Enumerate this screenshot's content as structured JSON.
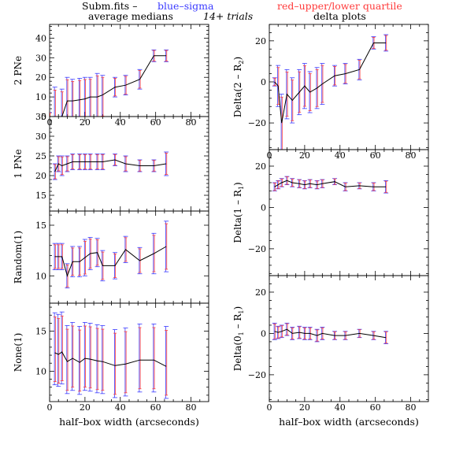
{
  "header": {
    "line1_prefix": "Subm.fits  –",
    "line1_blue": "blue–sigma",
    "line1_red": "red–upper/lower quartile",
    "left_title": "average medians",
    "center_note": "14+ trials",
    "right_title": "delta plots"
  },
  "colors": {
    "sigma": "#3a3aff",
    "quartile": "#ff3a3a",
    "line": "#000000"
  },
  "chart_data": [
    {
      "type": "line",
      "panel": "left-1",
      "xlabel": "",
      "ylabel": "2 PNe",
      "xlim": [
        0,
        90
      ],
      "ylim": [
        0,
        47
      ],
      "x_ticks": [
        0,
        20,
        40,
        60,
        80
      ],
      "y_ticks": [
        0,
        10,
        20,
        30,
        40
      ],
      "x_tick_labels": [
        "0",
        "20",
        "40",
        "60",
        "80"
      ],
      "y_tick_labels": [
        "0",
        "10",
        "20",
        "30",
        "40"
      ],
      "x": [
        0,
        3,
        7,
        10,
        13,
        17,
        20,
        23,
        27,
        30,
        37,
        43,
        51,
        59,
        66
      ],
      "y": [
        0,
        0,
        0,
        8,
        8,
        8.5,
        9,
        10,
        10,
        11,
        15,
        16,
        19,
        31,
        31
      ],
      "err_low": [
        0,
        15,
        5,
        12,
        12,
        12,
        10,
        13,
        12,
        12,
        5,
        5,
        5,
        3,
        3
      ],
      "err_high": [
        2,
        15,
        14,
        12,
        11,
        11,
        11,
        10,
        12,
        10,
        5,
        5,
        5,
        3,
        3
      ]
    },
    {
      "type": "line",
      "panel": "left-2",
      "xlabel": "",
      "ylabel": "1 PNe",
      "xlim": [
        0,
        90
      ],
      "ylim": [
        11,
        35
      ],
      "x_ticks": [
        0,
        20,
        40,
        60,
        80
      ],
      "y_ticks": [
        15,
        20,
        25,
        30,
        35
      ],
      "x_tick_labels": [],
      "y_tick_labels": [
        "15",
        "20",
        "25",
        "30",
        "35"
      ],
      "x": [
        3,
        5,
        7,
        10,
        13,
        17,
        20,
        23,
        27,
        30,
        37,
        43,
        51,
        59,
        66
      ],
      "y": [
        21,
        23,
        22.5,
        23,
        23.5,
        23.5,
        23.5,
        23.5,
        23.5,
        23.5,
        24,
        23,
        22.5,
        22.5,
        23
      ],
      "err_low": [
        2,
        2,
        2.5,
        2,
        2,
        2,
        2,
        2,
        2,
        2,
        1.5,
        2,
        1.5,
        1.5,
        3
      ],
      "err_high": [
        2,
        2,
        2.5,
        2,
        2,
        2,
        2,
        2,
        2,
        2,
        1.5,
        2,
        1.5,
        1.5,
        3
      ]
    },
    {
      "type": "line",
      "panel": "left-3",
      "xlabel": "",
      "ylabel": "Random(1)",
      "xlim": [
        0,
        90
      ],
      "ylim": [
        7.3,
        16.4
      ],
      "x_ticks": [
        0,
        20,
        40,
        60,
        80
      ],
      "y_ticks": [
        10,
        15
      ],
      "x_tick_labels": [],
      "y_tick_labels": [
        "10",
        "15"
      ],
      "x": [
        3,
        5,
        7,
        10,
        13,
        17,
        20,
        23,
        27,
        30,
        37,
        43,
        51,
        59,
        66
      ],
      "y": [
        11.9,
        11.9,
        11.9,
        10,
        11.4,
        11.4,
        11.8,
        12.2,
        12.3,
        11,
        11,
        12.6,
        11.5,
        12.2,
        12.9
      ],
      "err_low": [
        1.3,
        1.3,
        1.3,
        1.2,
        1.5,
        1.5,
        1.8,
        1.6,
        1.4,
        1.5,
        1.3,
        1.3,
        1.3,
        2,
        2.5
      ],
      "err_high": [
        1.3,
        1.3,
        1.3,
        1.2,
        1.5,
        1.5,
        1.8,
        1.6,
        1.4,
        1.5,
        1.3,
        1.3,
        1.3,
        2,
        2.5
      ]
    },
    {
      "type": "line",
      "panel": "left-4",
      "xlabel": "half–box width (arcseconds)",
      "ylabel": "None(1)",
      "xlim": [
        0,
        90
      ],
      "ylim": [
        6.2,
        18.5
      ],
      "x_ticks": [
        0,
        20,
        40,
        60,
        80
      ],
      "y_ticks": [
        10,
        15
      ],
      "x_tick_labels": [
        "0",
        "20",
        "40",
        "60",
        "80"
      ],
      "y_tick_labels": [
        "10",
        "15"
      ],
      "x": [
        3,
        5,
        7,
        10,
        13,
        17,
        20,
        23,
        27,
        30,
        37,
        43,
        51,
        59,
        66
      ],
      "y": [
        12.3,
        12.1,
        12.4,
        11.2,
        11.6,
        11.1,
        11.6,
        11.5,
        11.3,
        11.2,
        10.7,
        10.9,
        11.4,
        11.4,
        10.6
      ],
      "err_low": [
        4,
        4,
        4,
        4,
        4,
        4,
        4,
        4,
        4,
        4,
        4,
        4,
        4,
        4,
        4
      ],
      "err_high": [
        5,
        5,
        5,
        4.5,
        4.5,
        4.5,
        4.5,
        4.5,
        4.5,
        4.5,
        4.5,
        4.5,
        4.5,
        4.5,
        5
      ]
    },
    {
      "type": "line",
      "panel": "right-1",
      "xlabel": "",
      "ylabel": "Delta(2 – R",
      "ylabel_sub": "2",
      "ylabel_close": ")",
      "xlim": [
        0,
        90
      ],
      "ylim": [
        -33,
        28
      ],
      "x_ticks": [
        0,
        20,
        40,
        60,
        80
      ],
      "y_ticks": [
        -20,
        0,
        20
      ],
      "x_tick_labels": [
        "0",
        "20",
        "40",
        "60",
        "80"
      ],
      "y_tick_labels": [
        "−20",
        "0",
        "20"
      ],
      "x": [
        3,
        5,
        7,
        10,
        13,
        17,
        20,
        23,
        27,
        30,
        37,
        43,
        51,
        59,
        66
      ],
      "y": [
        0,
        -2,
        -20,
        -6,
        -9,
        -5,
        -2,
        -5,
        -3,
        -1,
        3,
        4,
        6,
        19,
        19
      ],
      "err_low": [
        2,
        10,
        15,
        12,
        11,
        11,
        11,
        10,
        10,
        10,
        5,
        5,
        5,
        3,
        4
      ],
      "err_high": [
        2,
        10,
        14,
        12,
        11,
        11,
        11,
        10,
        10,
        10,
        5,
        5,
        5,
        3,
        4
      ]
    },
    {
      "type": "line",
      "panel": "right-2",
      "xlabel": "",
      "ylabel": "Delta(1 – R",
      "ylabel_sub": "1",
      "ylabel_close": ")",
      "xlim": [
        0,
        90
      ],
      "ylim": [
        -33,
        28
      ],
      "x_ticks": [
        0,
        20,
        40,
        60,
        80
      ],
      "y_ticks": [
        -20,
        0,
        20
      ],
      "x_tick_labels": [],
      "y_tick_labels": [
        "−20",
        "0",
        "20"
      ],
      "x": [
        3,
        5,
        7,
        10,
        13,
        17,
        20,
        23,
        27,
        30,
        37,
        43,
        51,
        59,
        66
      ],
      "y": [
        10,
        11,
        12,
        13,
        12,
        11.5,
        11,
        11.5,
        11,
        11.5,
        12.5,
        10,
        10.5,
        10,
        10
      ],
      "err_low": [
        2,
        2,
        2,
        2,
        2,
        2,
        2,
        2,
        2,
        2,
        1.5,
        2,
        1.5,
        2,
        3
      ],
      "err_high": [
        2,
        2,
        2,
        2,
        2,
        2,
        2,
        2,
        2,
        2,
        1.5,
        2,
        1.5,
        2,
        3
      ]
    },
    {
      "type": "line",
      "panel": "right-3",
      "xlabel": "half–box width (arcseconds)",
      "ylabel": "Delta(0",
      "ylabel_sub1": "1",
      "ylabel_mid": " – R",
      "ylabel_sub": "1",
      "ylabel_close": ")",
      "xlim": [
        0,
        90
      ],
      "ylim": [
        -33,
        28
      ],
      "x_ticks": [
        0,
        20,
        40,
        60,
        80
      ],
      "y_ticks": [
        -20,
        0,
        20
      ],
      "x_tick_labels": [
        "0",
        "20",
        "40",
        "60",
        "80"
      ],
      "y_tick_labels": [
        "−20",
        "0",
        "20"
      ],
      "x": [
        3,
        5,
        7,
        10,
        13,
        17,
        20,
        23,
        27,
        30,
        37,
        43,
        51,
        59,
        66
      ],
      "y": [
        1,
        0.5,
        1,
        2,
        0,
        0.5,
        0,
        0,
        -1,
        0,
        -1,
        -1,
        0,
        -1,
        -2
      ],
      "err_low": [
        4,
        3,
        3,
        3,
        3,
        3,
        3,
        3,
        3,
        3,
        2,
        2,
        2,
        2,
        3
      ],
      "err_high": [
        4,
        3,
        3,
        3,
        3,
        3,
        3,
        3,
        3,
        3,
        2,
        2,
        2,
        2,
        3
      ]
    }
  ]
}
